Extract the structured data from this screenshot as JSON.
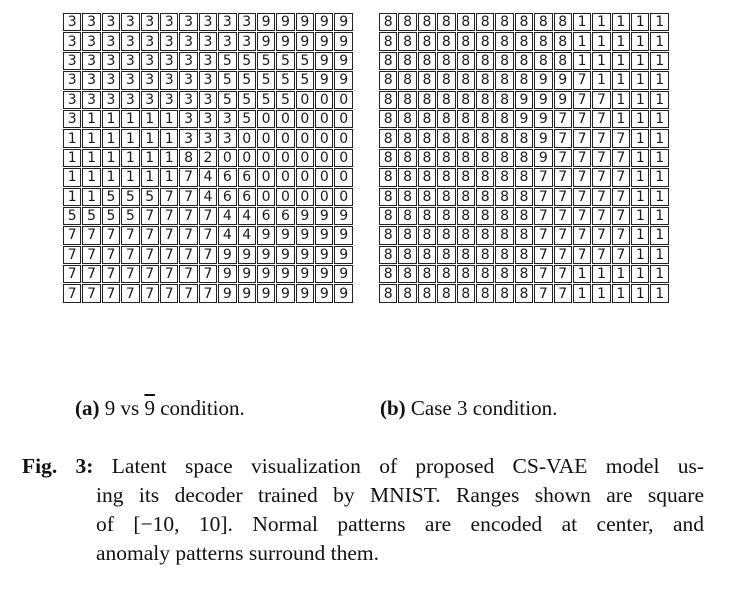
{
  "panel_a": {
    "rows": [
      "333333333399999",
      "333333333399999",
      "333333335555599",
      "333333335555599",
      "333333335555000",
      "311111333500000",
      "111111333000000",
      "111111820000000",
      "111111746600000",
      "115557746600000",
      "555577774466999",
      "777777774499999",
      "777777779999999",
      "777777779999999",
      "777777779999999"
    ],
    "caption": {
      "label": "(a)",
      "text_before": "9 vs",
      "overbar_text": "9",
      "text_after": "condition."
    }
  },
  "panel_b": {
    "rows": [
      "888888888811111",
      "888888888811111",
      "888888888811111",
      "888888889971111",
      "888888899977111",
      "888888899777111",
      "888888889777711",
      "888888889777711",
      "888888887777711",
      "888888887777711",
      "888888887777711",
      "888888887777711",
      "888888887777711",
      "888888887711111",
      "888888887711111"
    ],
    "caption": {
      "label": "(b)",
      "text": "Case 3 condition."
    }
  },
  "figure_caption": {
    "label": "Fig. 3:",
    "lines": [
      "Latent space visualization of proposed CS-VAE model us-",
      "ing its decoder trained by MNIST. Ranges shown are square",
      "of [−10, 10].  Normal patterns are encoded at center, and",
      "anomaly patterns surround them."
    ]
  }
}
